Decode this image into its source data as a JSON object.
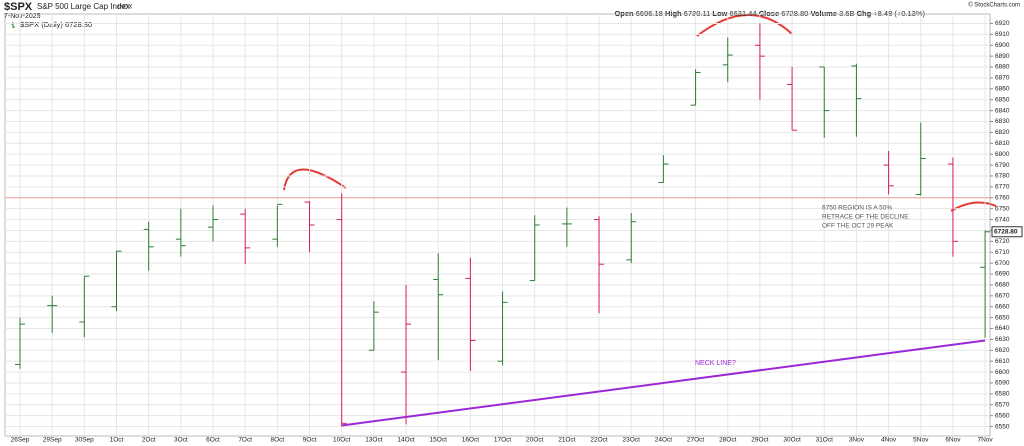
{
  "chart_data": {
    "type": "ohlc",
    "symbol": "$SPX",
    "name": "S&P 500 Large Cap Index",
    "exchange": "INDX",
    "date": "7-Nov-2025",
    "copyright": "© StockCharts.com",
    "quote": [
      {
        "label": "Open",
        "value": "6696.18"
      },
      {
        "label": "High",
        "value": "6730.11"
      },
      {
        "label": "Low",
        "value": "6631.44"
      },
      {
        "label": "Close",
        "value": "6728.80"
      },
      {
        "label": "Volume",
        "value": "3.6B"
      },
      {
        "label": "Chg",
        "value": "+8.48 (+0.13%)"
      }
    ],
    "legend": "$SPX (Daily) 6728.80",
    "last_price_label": {
      "value": 6728.8,
      "label": "6728.80"
    },
    "up_color": "#2e7d32",
    "down_color": "#d81b60",
    "categories": [
      "26Sep",
      "29Sep",
      "30Sep",
      "1Oct",
      "2Oct",
      "3Oct",
      "6Oct",
      "7Oct",
      "8Oct",
      "9Oct",
      "10Oct",
      "13Oct",
      "14Oct",
      "15Oct",
      "16Oct",
      "17Oct",
      "20Oct",
      "21Oct",
      "22Oct",
      "23Oct",
      "24Oct",
      "27Oct",
      "28Oct",
      "29Oct",
      "30Oct",
      "31Oct",
      "3Nov",
      "4Nov",
      "5Nov",
      "6Nov",
      "7Nov"
    ],
    "open": [
      6607,
      6661,
      6646,
      6660,
      6731,
      6722,
      6733,
      6745,
      6722,
      6756,
      6740,
      6620,
      6600,
      6685,
      6686,
      6610,
      6684,
      6736,
      6740,
      6703,
      6774,
      6845,
      6882,
      6900,
      6864,
      6880,
      6881,
      6790,
      6763,
      6791,
      6696.18
    ],
    "high": [
      6650,
      6670,
      6688,
      6711,
      6738,
      6750,
      6753,
      6750,
      6753,
      6757,
      6764,
      6665,
      6680,
      6709,
      6705,
      6674,
      6744,
      6751,
      6743,
      6746,
      6799,
      6878,
      6907,
      6920,
      6880,
      6880,
      6883,
      6803,
      6829,
      6797,
      6730.11
    ],
    "low": [
      6603,
      6636,
      6632,
      6656,
      6693,
      6706,
      6720,
      6699,
      6715,
      6710,
      6550,
      6620,
      6552,
      6611,
      6601,
      6606,
      6684,
      6715,
      6654,
      6700,
      6774,
      6845,
      6866,
      6850,
      6822,
      6815,
      6816,
      6763,
      6762,
      6706,
      6631.44
    ],
    "close": [
      6644,
      6661,
      6688,
      6711,
      6715,
      6716,
      6740,
      6714,
      6754,
      6735,
      6553,
      6655,
      6644,
      6671,
      6629,
      6664,
      6735,
      6736,
      6699,
      6738,
      6791,
      6875,
      6891,
      6890,
      6822,
      6840,
      6851,
      6771,
      6796,
      6720,
      6728.8
    ],
    "ylim": [
      6545,
      6925
    ],
    "yticks": [
      6550,
      6560,
      6570,
      6580,
      6590,
      6600,
      6610,
      6620,
      6630,
      6640,
      6650,
      6660,
      6670,
      6680,
      6690,
      6700,
      6710,
      6720,
      6730,
      6740,
      6750,
      6760,
      6770,
      6780,
      6790,
      6800,
      6810,
      6820,
      6830,
      6840,
      6850,
      6860,
      6870,
      6880,
      6890,
      6900,
      6910,
      6920
    ],
    "grid": true,
    "reference_line": {
      "value": 6760,
      "color": "#f0a0a0"
    },
    "neck_line": {
      "label": "NECK LINE?",
      "color": "#9c27d8",
      "categories": [
        "10Oct",
        "7Nov"
      ],
      "values": [
        6551,
        6629
      ]
    },
    "annotation": [
      "6750 REGION IS A 50%",
      "RETRACE OF THE DECLINE",
      "OFF THE OCT 29 PEAK"
    ]
  }
}
